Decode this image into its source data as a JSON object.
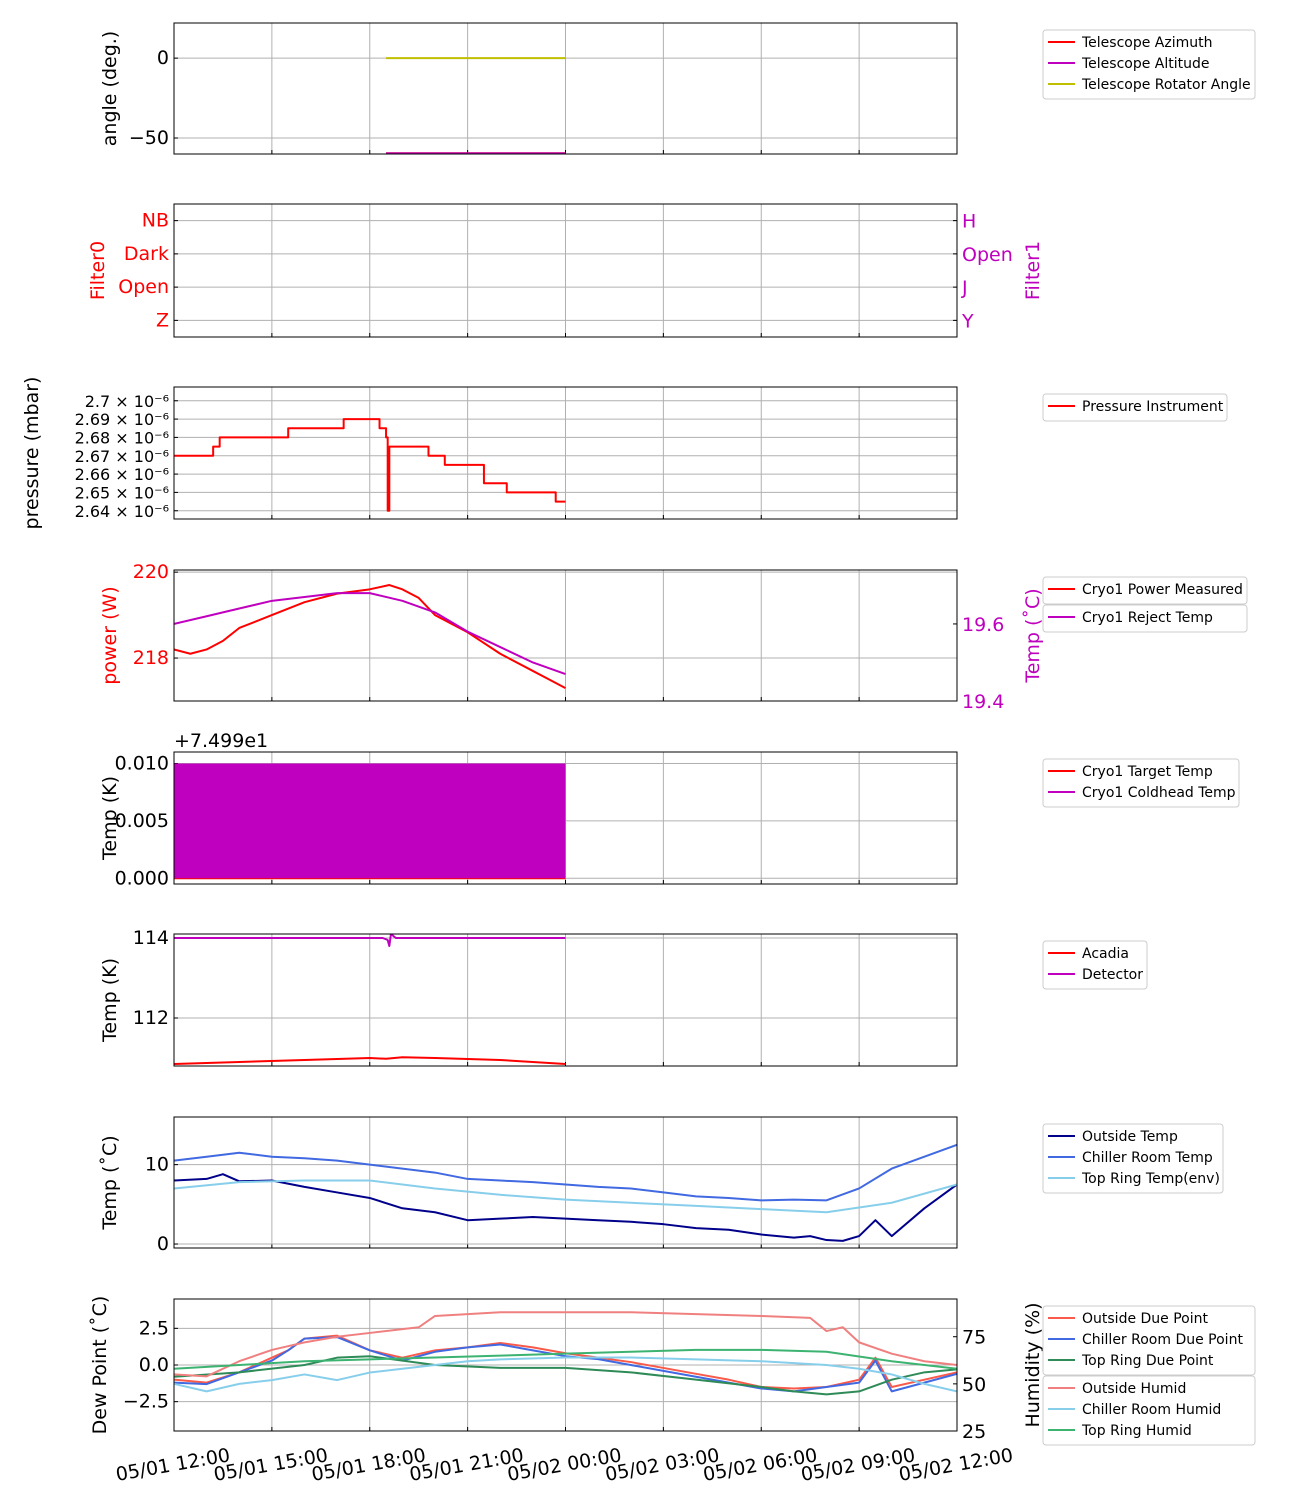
{
  "chart_data": [
    {
      "id": "telescope",
      "type": "line",
      "ylabel": "angle (deg.)",
      "ylim": [
        -60,
        22
      ],
      "yticks": [
        0,
        -50
      ],
      "ytick_labels": [
        "0",
        "−50"
      ],
      "legend": "right",
      "series": [
        {
          "name": "Telescope Azimuth",
          "color": "#ff0000",
          "x": [
            6.5,
            12
          ],
          "y": [
            -59.5,
            -59.5
          ]
        },
        {
          "name": "Telescope Altitude",
          "color": "#bf00bf",
          "x": [
            6.5,
            12
          ],
          "y": [
            -59.6,
            -59.6
          ]
        },
        {
          "name": "Telescope Rotator Angle",
          "color": "#bfbf00",
          "x": [
            6.5,
            12
          ],
          "y": [
            0,
            0
          ]
        }
      ]
    },
    {
      "id": "filters",
      "type": "categorical",
      "ylabel": "Filter0",
      "ylabel_color": "#ff0000",
      "ylim": [
        -0.5,
        3.5
      ],
      "yticks": [
        0,
        1,
        2,
        3
      ],
      "ytick_labels": [
        "Z",
        "Open",
        "Dark",
        "NB"
      ],
      "right_ylabel": "Filter1",
      "right_ylabel_color": "#bf00bf",
      "right_ytick_labels": [
        "Y",
        "J",
        "Open",
        "H"
      ],
      "series": []
    },
    {
      "id": "pressure",
      "type": "line",
      "ylabel": "pressure (mbar)",
      "ylim": [
        2.6355,
        2.7075
      ],
      "yticks": [
        2.64,
        2.65,
        2.66,
        2.67,
        2.68,
        2.69,
        2.7
      ],
      "ytick_labels": [
        "2.64 × 10⁻⁶",
        "2.65 × 10⁻⁶",
        "2.66 × 10⁻⁶",
        "2.67 × 10⁻⁶",
        "2.68 × 10⁻⁶",
        "2.69 × 10⁻⁶",
        "2.7 × 10⁻⁶"
      ],
      "legend": "right",
      "series": [
        {
          "name": "Pressure Instrument",
          "color": "#ff0000",
          "x": [
            0,
            0.3,
            1.2,
            1.4,
            3.3,
            3.5,
            5.2,
            5.5,
            6.3,
            6.5,
            6.55,
            6.6,
            7.2,
            7.8,
            8.3,
            9.5,
            10.2,
            11.7,
            12
          ],
          "y": [
            2.67,
            2.67,
            2.675,
            2.68,
            2.68,
            2.685,
            2.69,
            2.69,
            2.685,
            2.68,
            2.64,
            2.675,
            2.675,
            2.67,
            2.665,
            2.655,
            2.65,
            2.645,
            2.645
          ]
        }
      ]
    },
    {
      "id": "cryo-power",
      "type": "line",
      "ylabel": "power (W)",
      "ylabel_color": "#ff0000",
      "ylim": [
        217,
        220.05
      ],
      "yticks": [
        218,
        220
      ],
      "ytick_labels": [
        "218",
        "220"
      ],
      "right_ylabel": "Temp (˚C)",
      "right_ylabel_color": "#bf00bf",
      "right_ylim": [
        19.4,
        19.74
      ],
      "right_yticks": [
        19.4,
        19.6
      ],
      "right_ytick_labels": [
        "19.4",
        "19.6"
      ],
      "legend": "right",
      "series": [
        {
          "name": "Cryo1 Power Measured",
          "color": "#ff0000",
          "axis": "left",
          "x": [
            0,
            0.5,
            1,
            1.5,
            2,
            3,
            4,
            5,
            6,
            6.6,
            7,
            7.5,
            8,
            9,
            10,
            11,
            11.5,
            12
          ],
          "y": [
            218.2,
            218.1,
            218.2,
            218.4,
            218.7,
            219.0,
            219.3,
            219.5,
            219.6,
            219.7,
            219.6,
            219.4,
            219.0,
            218.6,
            218.1,
            217.7,
            217.5,
            217.3
          ]
        },
        {
          "name": "Cryo1 Reject Temp",
          "color": "#bf00bf",
          "axis": "right",
          "x": [
            0,
            1,
            2,
            3,
            4,
            5,
            6,
            7,
            8,
            9,
            10,
            11,
            12
          ],
          "y": [
            19.6,
            19.62,
            19.64,
            19.66,
            19.67,
            19.68,
            19.68,
            19.66,
            19.63,
            19.58,
            19.54,
            19.5,
            19.47
          ]
        }
      ]
    },
    {
      "id": "cryo-temp",
      "type": "line",
      "offset_label": "+7.499e1",
      "ylabel": "Temp (K)",
      "ylim": [
        -0.0005,
        0.011
      ],
      "yticks": [
        0.0,
        0.005,
        0.01
      ],
      "ytick_labels": [
        "0.000",
        "0.005",
        "0.010"
      ],
      "legend": "right",
      "series": [
        {
          "name": "Cryo1 Target Temp",
          "color": "#ff0000",
          "x": [
            0,
            12
          ],
          "y": [
            0.0,
            0.0
          ]
        },
        {
          "name": "Cryo1 Coldhead Temp",
          "color": "#bf00bf",
          "fill_band": [
            0.0,
            0.01
          ],
          "x": [
            0,
            12
          ],
          "y": [
            0.01,
            0.01
          ]
        }
      ]
    },
    {
      "id": "detector",
      "type": "line",
      "ylabel": "Temp (K)",
      "ylim": [
        110.8,
        114.1
      ],
      "yticks": [
        112,
        114
      ],
      "ytick_labels": [
        "112",
        "114"
      ],
      "legend": "right",
      "series": [
        {
          "name": "Acadia",
          "color": "#ff0000",
          "x": [
            0,
            2,
            4,
            6,
            6.5,
            7,
            8,
            10,
            12
          ],
          "y": [
            110.85,
            110.9,
            110.95,
            111.0,
            110.98,
            111.02,
            111.0,
            110.95,
            110.85
          ]
        },
        {
          "name": "Detector",
          "color": "#bf00bf",
          "x": [
            0,
            6.4,
            6.55,
            6.6,
            6.65,
            6.8,
            12
          ],
          "y": [
            114.0,
            114.0,
            113.95,
            113.8,
            114.1,
            114.0,
            114.0
          ]
        }
      ]
    },
    {
      "id": "environment-temp",
      "type": "line",
      "ylabel": "Temp (˚C)",
      "ylim": [
        -0.5,
        16
      ],
      "yticks": [
        0,
        10
      ],
      "ytick_labels": [
        "0",
        "10"
      ],
      "legend": "right",
      "series": [
        {
          "name": "Outside Temp",
          "color": "#00008b",
          "x": [
            0,
            1,
            1.5,
            2,
            3,
            4,
            5,
            6,
            7,
            8,
            9,
            10,
            11,
            12,
            13,
            14,
            15,
            16,
            17,
            18,
            19,
            19.5,
            20,
            20.5,
            21,
            21.5,
            22,
            23,
            24
          ],
          "y": [
            8.0,
            8.2,
            8.8,
            7.9,
            8.0,
            7.2,
            6.5,
            5.8,
            4.5,
            4.0,
            3.0,
            3.2,
            3.4,
            3.2,
            3.0,
            2.8,
            2.5,
            2.0,
            1.8,
            1.2,
            0.8,
            1.0,
            0.5,
            0.4,
            1.0,
            3.0,
            1.0,
            4.5,
            7.5
          ]
        },
        {
          "name": "Chiller Room Temp",
          "color": "#4169e1",
          "x": [
            0,
            1,
            2,
            3,
            4,
            5,
            6,
            7,
            8,
            9,
            10,
            11,
            12,
            13,
            14,
            15,
            16,
            17,
            18,
            19,
            20,
            21,
            22,
            23,
            24
          ],
          "y": [
            10.5,
            11.0,
            11.5,
            11.0,
            10.8,
            10.5,
            10.0,
            9.5,
            9.0,
            8.2,
            8.0,
            7.8,
            7.5,
            7.2,
            7.0,
            6.5,
            6.0,
            5.8,
            5.5,
            5.6,
            5.5,
            7.0,
            9.5,
            11.0,
            12.5
          ]
        },
        {
          "name": "Top Ring Temp(env)",
          "color": "#87ceeb",
          "x": [
            0,
            2,
            4,
            6,
            8,
            10,
            12,
            14,
            16,
            18,
            20,
            22,
            24
          ],
          "y": [
            7.0,
            7.8,
            8.0,
            8.0,
            7.0,
            6.2,
            5.6,
            5.2,
            4.8,
            4.4,
            4.0,
            5.2,
            7.5
          ]
        }
      ]
    },
    {
      "id": "dewpoint",
      "type": "line",
      "ylabel": "Dew Point (˚C)",
      "ylim": [
        -4.5,
        4.5
      ],
      "yticks": [
        -2.5,
        0.0,
        2.5
      ],
      "ytick_labels": [
        "−2.5",
        "0.0",
        "2.5"
      ],
      "right_ylabel": "Humidity (%)",
      "right_ylim": [
        25,
        95
      ],
      "right_yticks": [
        25,
        50,
        75
      ],
      "right_ytick_labels": [
        "25",
        "50",
        "75"
      ],
      "legend": "right",
      "xticks": [
        0,
        3,
        6,
        9,
        12,
        15,
        18,
        21,
        24
      ],
      "xtick_labels": [
        "05/01 12:00",
        "05/01 15:00",
        "05/01 18:00",
        "05/01 21:00",
        "05/02 00:00",
        "05/02 03:00",
        "05/02 06:00",
        "05/02 09:00",
        "05/02 12:00"
      ],
      "series": [
        {
          "name": "Outside Due Point",
          "color": "#fa5a4a",
          "axis": "left",
          "x": [
            0,
            1,
            2,
            3,
            3.5,
            4,
            5,
            6,
            7,
            8,
            9,
            10,
            11,
            12,
            13,
            14,
            15,
            16,
            17,
            18,
            19,
            20,
            21,
            21.5,
            22,
            23,
            24
          ],
          "y": [
            -1.0,
            -1.2,
            -0.5,
            0.5,
            1.0,
            1.8,
            2.0,
            1.0,
            0.5,
            1.0,
            1.2,
            1.5,
            1.2,
            0.8,
            0.5,
            0.2,
            -0.2,
            -0.6,
            -1.0,
            -1.5,
            -1.6,
            -1.5,
            -1.0,
            0.5,
            -1.5,
            -1.0,
            -0.5
          ]
        },
        {
          "name": "Chiller Room Due Point",
          "color": "#4169e1",
          "axis": "left",
          "x": [
            0,
            1,
            2,
            3,
            3.5,
            4,
            5,
            6,
            7,
            8,
            9,
            10,
            11,
            12,
            13,
            14,
            15,
            16,
            17,
            18,
            19,
            20,
            21,
            21.5,
            22,
            23,
            24
          ],
          "y": [
            -1.2,
            -1.3,
            -0.5,
            0.3,
            1.0,
            1.8,
            1.9,
            1.0,
            0.3,
            0.9,
            1.2,
            1.4,
            1.0,
            0.6,
            0.4,
            0.0,
            -0.4,
            -0.8,
            -1.2,
            -1.6,
            -1.8,
            -1.5,
            -1.2,
            0.3,
            -1.8,
            -1.2,
            -0.6
          ]
        },
        {
          "name": "Top Ring Due Point",
          "color": "#2e8b57",
          "axis": "left",
          "x": [
            0,
            2,
            4,
            5,
            6,
            8,
            10,
            12,
            14,
            16,
            18,
            19,
            20,
            21,
            22,
            23,
            24
          ],
          "y": [
            -0.8,
            -0.5,
            0.0,
            0.5,
            0.6,
            0.0,
            -0.2,
            -0.2,
            -0.5,
            -1.0,
            -1.5,
            -1.8,
            -2.0,
            -1.8,
            -1.0,
            -0.5,
            -0.3
          ]
        },
        {
          "name": "Outside Humid",
          "color": "#f08080",
          "axis": "right",
          "x": [
            0,
            1,
            2,
            3,
            4,
            5,
            6,
            7,
            7.5,
            8,
            9,
            10,
            12,
            14,
            16,
            18,
            19.5,
            20,
            20.5,
            21,
            22,
            23,
            24
          ],
          "y": [
            55,
            54,
            62,
            68,
            72,
            75,
            77,
            79,
            80,
            86,
            87,
            88,
            88,
            88,
            87,
            86,
            85,
            78,
            80,
            72,
            66,
            62,
            60
          ]
        },
        {
          "name": "Chiller Room Humid",
          "color": "#87ceeb",
          "axis": "right",
          "x": [
            0,
            1,
            2,
            3,
            4,
            5,
            6,
            7,
            8,
            9,
            10,
            12,
            14,
            16,
            18,
            20,
            21,
            22,
            23,
            24
          ],
          "y": [
            50,
            46,
            50,
            52,
            55,
            52,
            56,
            58,
            60,
            62,
            63,
            64,
            64,
            63,
            62,
            60,
            58,
            55,
            50,
            46
          ]
        },
        {
          "name": "Top Ring Humid",
          "color": "#3cb371",
          "axis": "right",
          "x": [
            0,
            2,
            4,
            6,
            8,
            10,
            12,
            14,
            16,
            18,
            20,
            22,
            24
          ],
          "y": [
            58,
            60,
            62,
            63,
            64,
            65,
            66,
            67,
            68,
            68,
            67,
            62,
            58
          ]
        }
      ]
    }
  ]
}
